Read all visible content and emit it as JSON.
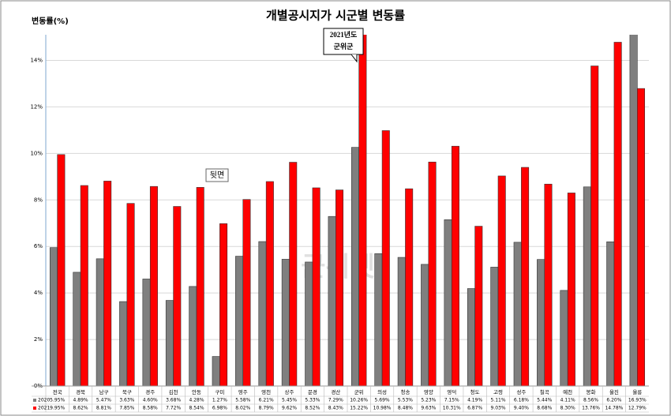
{
  "chart_data": {
    "type": "bar",
    "title": "개별공시지가 시군별 변동률",
    "y_label": "변동률(%)",
    "categories": [
      "전국",
      "경북",
      "남구",
      "북구",
      "경주",
      "김천",
      "안동",
      "구미",
      "영주",
      "영천",
      "상주",
      "문경",
      "경산",
      "군위",
      "의성",
      "청송",
      "영양",
      "영덕",
      "청도",
      "고령",
      "성주",
      "칠곡",
      "예천",
      "봉화",
      "울진",
      "울릉"
    ],
    "series": [
      {
        "name": "2020",
        "color": "#7f7f7f",
        "values": [
          5.95,
          4.89,
          5.47,
          3.63,
          4.6,
          3.68,
          4.28,
          1.27,
          5.58,
          6.21,
          5.45,
          5.33,
          7.29,
          10.26,
          5.69,
          5.53,
          5.23,
          7.15,
          4.19,
          5.11,
          6.18,
          5.44,
          4.11,
          8.56,
          6.2,
          16.93
        ],
        "value_labels": [
          "5.95%",
          "4.89%",
          "5.47%",
          "3.63%",
          "4.60%",
          "3.68%",
          "4.28%",
          "1.27%",
          "5.58%",
          "6.21%",
          "5.45%",
          "5.33%",
          "7.29%",
          "10.26%",
          "5.69%",
          "5.53%",
          "5.23%",
          "7.15%",
          "4.19%",
          "5.11%",
          "6.18%",
          "5.44%",
          "4.11%",
          "8.56%",
          "6.20%",
          "16.93%"
        ]
      },
      {
        "name": "2021",
        "color": "#ff0000",
        "values": [
          9.95,
          8.62,
          8.81,
          7.85,
          8.58,
          7.72,
          8.54,
          6.98,
          8.02,
          8.79,
          9.62,
          8.52,
          8.43,
          15.22,
          10.98,
          8.48,
          9.63,
          10.31,
          6.87,
          9.03,
          9.4,
          8.68,
          8.3,
          13.76,
          14.78,
          12.79
        ],
        "value_labels": [
          "9.95%",
          "8.62%",
          "8.81%",
          "7.85%",
          "8.58%",
          "7.72%",
          "8.54%",
          "6.98%",
          "8.02%",
          "8.79%",
          "9.62%",
          "8.52%",
          "8.43%",
          "15.22%",
          "10.98%",
          "8.48%",
          "9.63%",
          "10.31%",
          "6.87%",
          "9.03%",
          "9.40%",
          "8.68%",
          "8.30%",
          "13.76%",
          "14.78%",
          "12.79%"
        ]
      }
    ],
    "ylim": [
      0,
      15
    ],
    "yticks": [
      {
        "value": 0,
        "label": "0%"
      },
      {
        "value": 2,
        "label": "2%"
      },
      {
        "value": 4,
        "label": "4%"
      },
      {
        "value": 6,
        "label": "6%"
      },
      {
        "value": 8,
        "label": "8%"
      },
      {
        "value": 10,
        "label": "10%"
      },
      {
        "value": 12,
        "label": "12%"
      },
      {
        "value": 14,
        "label": "14%"
      }
    ],
    "grid": true,
    "annotations": [
      "2021년도",
      "군위군",
      "뒷면",
      "군위넷"
    ]
  }
}
